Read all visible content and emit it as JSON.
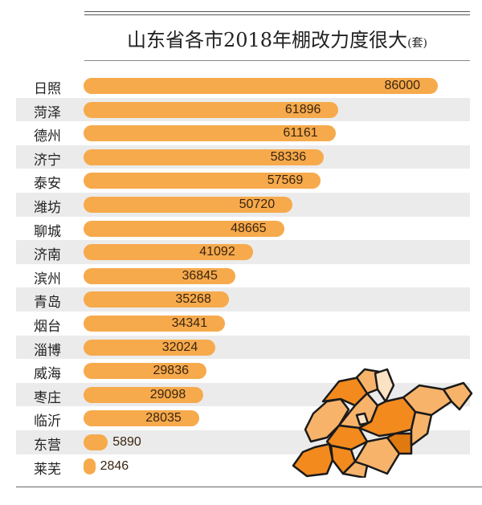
{
  "chart_data": {
    "type": "bar",
    "orientation": "horizontal",
    "title": "山东省各市2018年棚改力度很大",
    "unit": "(套)",
    "categories": [
      "日照",
      "菏泽",
      "德州",
      "济宁",
      "泰安",
      "潍坊",
      "聊城",
      "济南",
      "滨州",
      "青岛",
      "烟台",
      "淄博",
      "威海",
      "枣庄",
      "临沂",
      "东营",
      "莱芜"
    ],
    "values": [
      86000,
      61896,
      61161,
      58336,
      57569,
      50720,
      48665,
      41092,
      36845,
      35268,
      34341,
      32024,
      29836,
      29098,
      28035,
      5890,
      2846
    ],
    "bar_color": "#f6aa4c",
    "row_stripe_color": "#ebebeb",
    "grid": false,
    "legend": "none",
    "data_labels": true
  }
}
